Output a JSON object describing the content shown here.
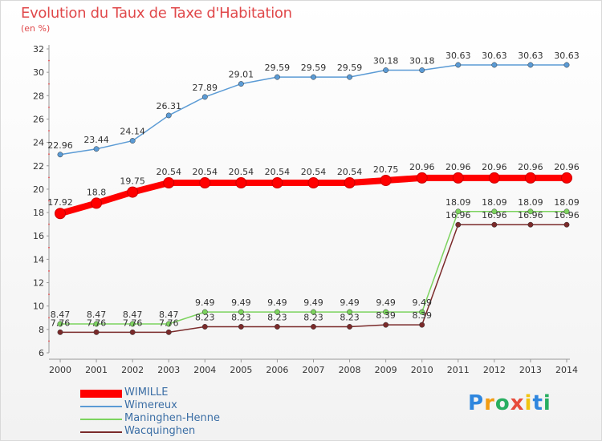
{
  "header": {
    "title": "Evolution du Taux de Taxe d'Habitation",
    "unit": "(en %)"
  },
  "chart_data": {
    "type": "line",
    "x": [
      "2000",
      "2001",
      "2002",
      "2003",
      "2004",
      "2005",
      "2006",
      "2007",
      "2008",
      "2009",
      "2010",
      "2011",
      "2012",
      "2013",
      "2014"
    ],
    "ylim": [
      6,
      32
    ],
    "yticks": [
      6,
      8,
      10,
      12,
      14,
      16,
      18,
      20,
      22,
      24,
      26,
      28,
      30,
      32
    ],
    "grid": false,
    "legend": "bottom-left",
    "series": [
      {
        "name": "Wimereux",
        "color": "#5b9bd5",
        "values": [
          22.96,
          23.44,
          24.14,
          26.31,
          27.89,
          29.01,
          29.59,
          29.59,
          29.59,
          30.18,
          30.18,
          30.63,
          30.63,
          30.63,
          30.63
        ]
      },
      {
        "name": "Maninghen-Henne",
        "color": "#7cd35e",
        "values": [
          8.47,
          8.47,
          8.47,
          8.47,
          9.49,
          9.49,
          9.49,
          9.49,
          9.49,
          9.49,
          9.49,
          18.09,
          18.09,
          18.09,
          18.09
        ]
      },
      {
        "name": "Wacquinghen",
        "color": "#7a2a2a",
        "values": [
          7.76,
          7.76,
          7.76,
          7.76,
          8.23,
          8.23,
          8.23,
          8.23,
          8.23,
          8.39,
          8.39,
          16.96,
          16.96,
          16.96,
          16.96
        ]
      },
      {
        "name": "WIMILLE",
        "color": "#ff0000",
        "values": [
          17.92,
          18.8,
          19.75,
          20.54,
          20.54,
          20.54,
          20.54,
          20.54,
          20.54,
          20.75,
          20.96,
          20.96,
          20.96,
          20.96,
          20.96
        ]
      }
    ]
  },
  "legend_items": [
    {
      "name": "WIMILLE",
      "color": "#ff0000"
    },
    {
      "name": "Wimereux",
      "color": "#5b9bd5"
    },
    {
      "name": "Maninghen-Henne",
      "color": "#7cd35e"
    },
    {
      "name": "Wacquinghen",
      "color": "#7a2a2a"
    }
  ],
  "logo": {
    "letters": [
      "P",
      "r",
      "o",
      "x",
      "i",
      "t",
      "i"
    ],
    "colors": [
      "#2e86de",
      "#f39c12",
      "#27ae60",
      "#e74c3c",
      "#f1c40f",
      "#2e86de",
      "#27ae60"
    ]
  }
}
